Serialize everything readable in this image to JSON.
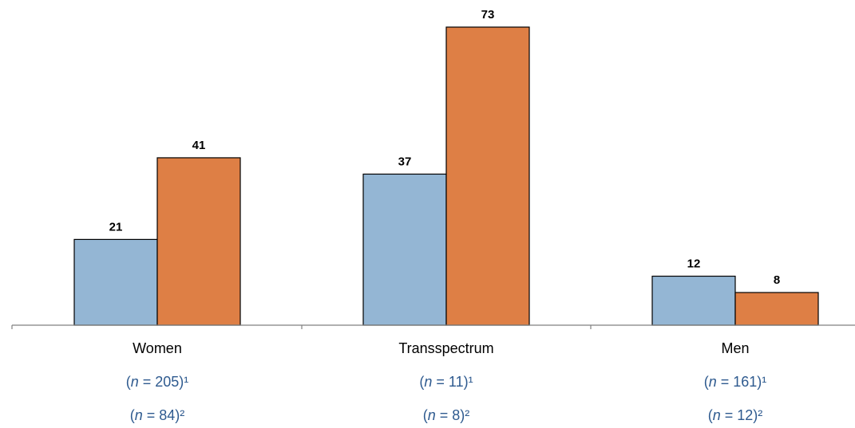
{
  "chart_data": {
    "type": "bar",
    "categories": [
      "Women",
      "Transspectrum",
      "Men"
    ],
    "series": [
      {
        "values": [
          21,
          37,
          12
        ],
        "color": "#94b6d4"
      },
      {
        "values": [
          41,
          73,
          8
        ],
        "color": "#de7f45"
      }
    ],
    "ylim": [
      0,
      73
    ],
    "grid": false,
    "legend": "none",
    "n_labels": [
      [
        "(",
        "n",
        " = 205)¹",
        "(",
        "n",
        " = 84)²"
      ],
      [
        "(",
        "n",
        " = 11)¹",
        "(",
        "n",
        " = 8)²"
      ],
      [
        "(",
        "n",
        " = 161)¹",
        "(",
        "n",
        " = 12)²"
      ]
    ]
  }
}
